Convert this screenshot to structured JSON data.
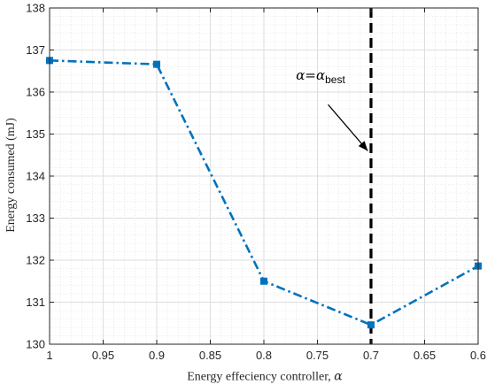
{
  "chart_data": {
    "type": "line",
    "title": "",
    "xlabel": "Energy effeciency controller, ",
    "xlabel_symbol": "α",
    "ylabel": "Energy consumed (mJ)",
    "x_reversed": true,
    "xlim": [
      0.6,
      1.0
    ],
    "ylim": [
      130,
      138
    ],
    "x_ticks": [
      1.0,
      0.95,
      0.9,
      0.85,
      0.8,
      0.75,
      0.7,
      0.65,
      0.6
    ],
    "x_tick_labels": [
      "1",
      "0.95",
      "0.9",
      "0.85",
      "0.8",
      "0.75",
      "0.7",
      "0.65",
      "0.6"
    ],
    "y_ticks": [
      130,
      131,
      132,
      133,
      134,
      135,
      136,
      137,
      138
    ],
    "y_tick_labels": [
      "130",
      "131",
      "132",
      "133",
      "134",
      "135",
      "136",
      "137",
      "138"
    ],
    "grid": true,
    "minor_grid": true,
    "series": [
      {
        "color": "#0072BD",
        "line_style": "dash-dot",
        "marker": "square",
        "x": [
          1.0,
          0.9,
          0.8,
          0.7,
          0.6
        ],
        "y": [
          136.75,
          136.66,
          131.5,
          130.46,
          131.86
        ]
      }
    ],
    "vertical_line": {
      "x": 0.7,
      "color": "#000000",
      "style": "dashed"
    },
    "annotation": {
      "text": "α=α",
      "subscript": "best",
      "text_position": [
        0.77,
        136.3
      ],
      "arrow_tail": [
        0.74,
        135.7
      ],
      "arrow_head": [
        0.703,
        134.6
      ]
    }
  }
}
